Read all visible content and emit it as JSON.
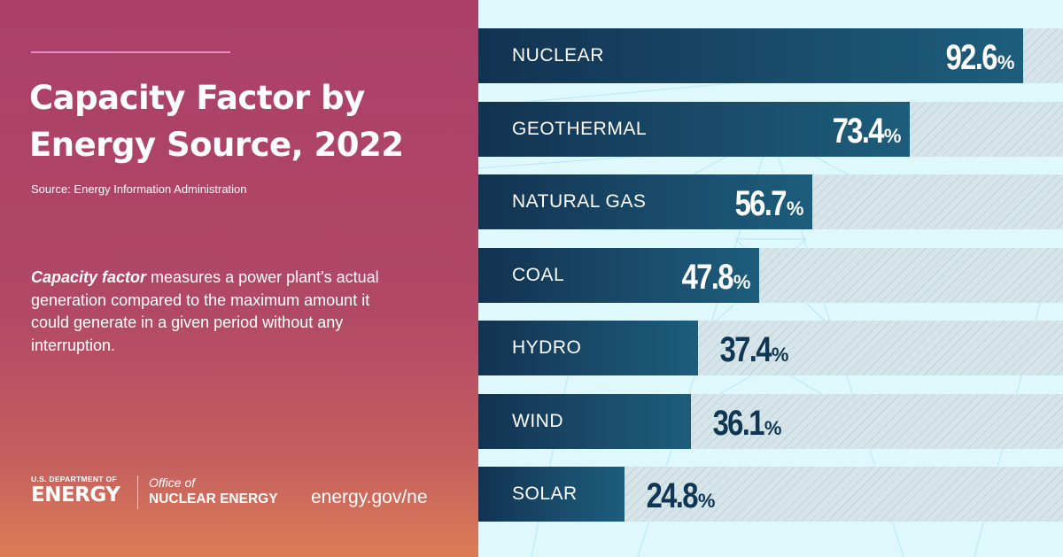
{
  "title": "Capacity Factor by Energy Source, 2022",
  "source": "Source: Energy Information Administration",
  "description": {
    "term": "Capacity factor",
    "text": " measures a power plant's actual generation compared to the maximum amount it could generate in a given period without any interruption."
  },
  "footer": {
    "doe_top": "U.S. DEPARTMENT OF",
    "doe_main": "ENERGY",
    "office_of": "Office of",
    "office_name": "NUCLEAR ENERGY",
    "site": "energy.gov/ne"
  },
  "colors": {
    "left_panel": "#aa4068",
    "bar": "#194968",
    "chart_background": "#def8fc",
    "track": "#d6e5e9"
  },
  "chart_data": {
    "type": "bar",
    "orientation": "horizontal",
    "title": "Capacity Factor by Energy Source, 2022",
    "xlim": [
      0,
      100
    ],
    "unit": "%",
    "categories": [
      "NUCLEAR",
      "GEOTHERMAL",
      "NATURAL GAS",
      "COAL",
      "HYDRO",
      "WIND",
      "SOLAR"
    ],
    "values": [
      92.6,
      73.4,
      56.7,
      47.8,
      37.4,
      36.1,
      24.8
    ]
  }
}
